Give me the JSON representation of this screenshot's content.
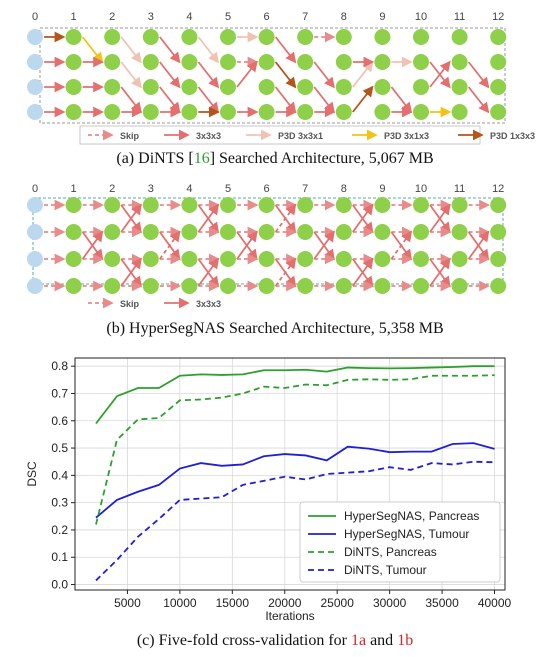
{
  "panel_a": {
    "column_labels": [
      "0",
      "1",
      "2",
      "3",
      "4",
      "5",
      "6",
      "7",
      "8",
      "9",
      "10",
      "11",
      "12"
    ],
    "legend": [
      {
        "label": "Skip",
        "color": "#e88b8b",
        "dashed": true
      },
      {
        "label": "3x3x3",
        "color": "#e46f6f",
        "dashed": false
      },
      {
        "label": "P3D 3x3x1",
        "color": "#f0c2b4",
        "dashed": false
      },
      {
        "label": "P3D 3x1x3",
        "color": "#f2c315",
        "dashed": false
      },
      {
        "label": "P3D 1x3x3",
        "color": "#b5541b",
        "dashed": false
      }
    ],
    "caption_prefix": "(a) DiNTS [",
    "caption_ref": "16",
    "caption_suffix": "] Searched Architecture, 5,067 MB"
  },
  "panel_b": {
    "column_labels": [
      "0",
      "1",
      "2",
      "3",
      "4",
      "5",
      "6",
      "7",
      "8",
      "9",
      "10",
      "11",
      "12"
    ],
    "legend": [
      {
        "label": "Skip",
        "color": "#e88b8b",
        "dashed": true
      },
      {
        "label": "3x3x3",
        "color": "#e46f6f",
        "dashed": false
      }
    ],
    "caption": "(b) HyperSegNAS Searched Architecture, 5,358 MB"
  },
  "panel_c": {
    "caption_prefix": "(c) Five-fold cross-validation for ",
    "caption_ref1": "1a",
    "caption_and": " and ",
    "caption_ref2": "1b"
  },
  "colors": {
    "node_green": "#8ed04a",
    "node_input": "#bcd8ef",
    "hyper_color": "#2ca02c",
    "dints_color": "#1f1fd6"
  },
  "chart_data": {
    "type": "line",
    "xlabel": "Iterations",
    "ylabel": "DSC",
    "xlim": [
      0,
      41000
    ],
    "ylim": [
      -0.02,
      0.83
    ],
    "xticks": [
      5000,
      10000,
      15000,
      20000,
      25000,
      30000,
      35000,
      40000
    ],
    "yticks": [
      0.0,
      0.1,
      0.2,
      0.3,
      0.4,
      0.5,
      0.6,
      0.7,
      0.8
    ],
    "grid": true,
    "legend_position": "lower right",
    "x": [
      2000,
      4000,
      6000,
      8000,
      10000,
      12000,
      14000,
      16000,
      18000,
      20000,
      22000,
      24000,
      26000,
      28000,
      30000,
      32000,
      34000,
      36000,
      38000,
      40000
    ],
    "series": [
      {
        "name": "HyperSegNAS, Pancreas",
        "color": "#2ca02c",
        "dash": "solid",
        "values": [
          0.59,
          0.69,
          0.72,
          0.72,
          0.765,
          0.77,
          0.768,
          0.77,
          0.785,
          0.785,
          0.787,
          0.78,
          0.795,
          0.793,
          0.792,
          0.793,
          0.795,
          0.797,
          0.8,
          0.8
        ]
      },
      {
        "name": "HyperSegNAS, Tumour",
        "color": "#1f1fd6",
        "dash": "solid",
        "values": [
          0.245,
          0.31,
          0.34,
          0.365,
          0.425,
          0.445,
          0.435,
          0.44,
          0.47,
          0.478,
          0.473,
          0.455,
          0.505,
          0.498,
          0.485,
          0.487,
          0.487,
          0.515,
          0.518,
          0.497
        ]
      },
      {
        "name": "DiNTS, Pancreas",
        "color": "#2ca02c",
        "dash": "dashed",
        "values": [
          0.22,
          0.53,
          0.605,
          0.61,
          0.675,
          0.678,
          0.685,
          0.7,
          0.725,
          0.72,
          0.733,
          0.73,
          0.75,
          0.752,
          0.75,
          0.752,
          0.765,
          0.765,
          0.765,
          0.767
        ]
      },
      {
        "name": "DiNTS, Tumour",
        "color": "#1f1fd6",
        "dash": "dashed",
        "values": [
          0.015,
          0.09,
          0.175,
          0.24,
          0.31,
          0.315,
          0.32,
          0.365,
          0.38,
          0.395,
          0.385,
          0.405,
          0.41,
          0.415,
          0.43,
          0.42,
          0.445,
          0.44,
          0.45,
          0.448
        ]
      }
    ]
  }
}
